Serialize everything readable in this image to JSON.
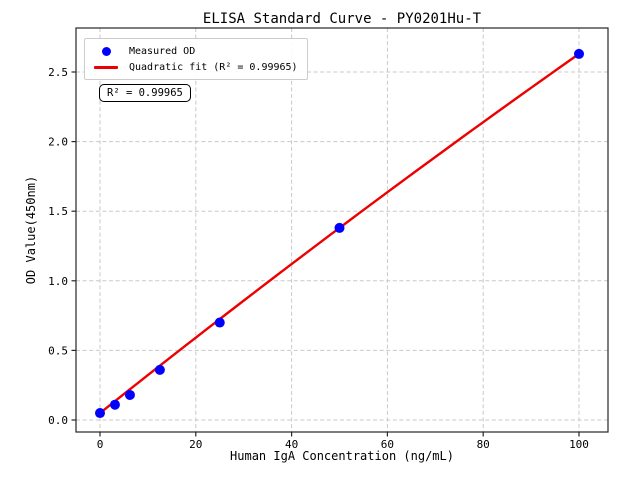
{
  "chart_data": {
    "type": "scatter",
    "title": "ELISA Standard Curve - PY0201Hu-T",
    "xlabel": "Human IgA Concentration (ng/mL)",
    "ylabel": "OD Value(450nm)",
    "xlim": [
      -5,
      105
    ],
    "ylim": [
      -0.09,
      2.82
    ],
    "grid": true,
    "legend_position": "upper left",
    "xticks": [
      {
        "value": 0,
        "label": "0"
      },
      {
        "value": 20,
        "label": "20"
      },
      {
        "value": 40,
        "label": "40"
      },
      {
        "value": 60,
        "label": "60"
      },
      {
        "value": 80,
        "label": "80"
      },
      {
        "value": 100,
        "label": "100"
      }
    ],
    "yticks": [
      {
        "value": 0.0,
        "label": "0.0"
      },
      {
        "value": 0.5,
        "label": "0.5"
      },
      {
        "value": 1.0,
        "label": "1.0"
      },
      {
        "value": 1.5,
        "label": "1.5"
      },
      {
        "value": 2.0,
        "label": "2.0"
      },
      {
        "value": 2.5,
        "label": "2.5"
      }
    ],
    "series": [
      {
        "name": "Measured OD",
        "type": "scatter",
        "color": "#0000ff",
        "x": [
          0,
          3.125,
          6.25,
          12.5,
          25,
          50,
          100
        ],
        "y": [
          0.05,
          0.11,
          0.18,
          0.36,
          0.7,
          1.38,
          2.63
        ]
      },
      {
        "name": "Quadratic fit (R² = 0.99965)",
        "type": "line",
        "fit": "quadratic",
        "color": "#ee0000",
        "r_squared": 0.99965
      }
    ],
    "annotation": {
      "text": "R² = 0.99965"
    }
  },
  "colors": {
    "scatter": "#0000ff",
    "fit_line": "#ee0000",
    "grid": "#c9c9c9",
    "spine": "#262626",
    "text": "#000000"
  }
}
